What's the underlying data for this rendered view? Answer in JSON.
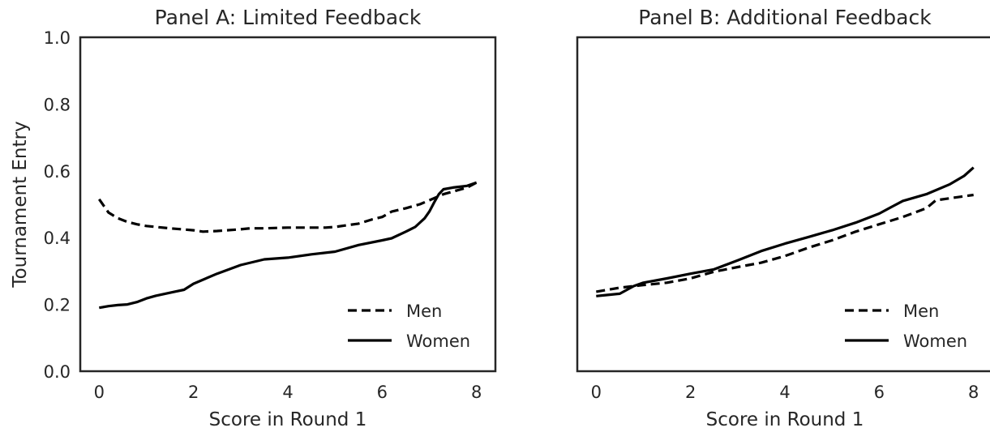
{
  "chart_data": [
    {
      "type": "line",
      "title": "Panel A: Limited Feedback",
      "xlabel": "Score in Round 1",
      "ylabel": "Tournament Entry",
      "xlim": [
        -0.4,
        8.4
      ],
      "ylim": [
        0.0,
        1.0
      ],
      "xticks": [
        "0",
        "2",
        "4",
        "6",
        "8"
      ],
      "yticks": [
        "0.0",
        "0.2",
        "0.4",
        "0.6",
        "0.8",
        "1.0"
      ],
      "grid": false,
      "legend": "bottom-right",
      "series": [
        {
          "name": "Men",
          "style": "dashed",
          "x": [
            0,
            0.2,
            0.4,
            0.6,
            0.8,
            1.0,
            1.5,
            2.0,
            2.2,
            2.5,
            3.0,
            3.2,
            3.5,
            4.0,
            4.5,
            4.8,
            5.0,
            5.5,
            5.8,
            6.0,
            6.2,
            6.5,
            6.8,
            7.0,
            7.3,
            7.6,
            7.8,
            8.0
          ],
          "y": [
            0.515,
            0.475,
            0.458,
            0.447,
            0.44,
            0.435,
            0.428,
            0.422,
            0.418,
            0.42,
            0.425,
            0.428,
            0.428,
            0.43,
            0.43,
            0.43,
            0.432,
            0.442,
            0.455,
            0.462,
            0.478,
            0.488,
            0.5,
            0.512,
            0.53,
            0.542,
            0.55,
            0.565
          ]
        },
        {
          "name": "Women",
          "style": "solid",
          "x": [
            0,
            0.2,
            0.4,
            0.6,
            0.8,
            1.0,
            1.2,
            1.4,
            1.6,
            1.8,
            2.0,
            2.5,
            3.0,
            3.5,
            4.0,
            4.5,
            5.0,
            5.5,
            6.0,
            6.2,
            6.5,
            6.7,
            6.9,
            7.0,
            7.1,
            7.2,
            7.3,
            7.5,
            7.8,
            8.0
          ],
          "y": [
            0.19,
            0.195,
            0.198,
            0.2,
            0.207,
            0.218,
            0.226,
            0.232,
            0.238,
            0.244,
            0.262,
            0.292,
            0.318,
            0.335,
            0.34,
            0.35,
            0.358,
            0.378,
            0.392,
            0.398,
            0.418,
            0.432,
            0.458,
            0.478,
            0.505,
            0.53,
            0.545,
            0.55,
            0.555,
            0.565
          ]
        }
      ]
    },
    {
      "type": "line",
      "title": "Panel B: Additional Feedback",
      "xlabel": "Score in Round 1",
      "ylabel": "",
      "xlim": [
        -0.4,
        8.4
      ],
      "ylim": [
        0.0,
        1.0
      ],
      "xticks": [
        "0",
        "2",
        "4",
        "6",
        "8"
      ],
      "yticks": [],
      "grid": false,
      "legend": "bottom-right",
      "series": [
        {
          "name": "Men",
          "style": "dashed",
          "x": [
            0,
            0.5,
            1.0,
            1.5,
            2.0,
            2.5,
            3.0,
            3.5,
            4.0,
            4.5,
            5.0,
            5.5,
            6.0,
            6.5,
            7.0,
            7.2,
            7.5,
            8.0
          ],
          "y": [
            0.238,
            0.25,
            0.258,
            0.265,
            0.278,
            0.298,
            0.312,
            0.325,
            0.345,
            0.37,
            0.392,
            0.418,
            0.44,
            0.462,
            0.488,
            0.512,
            0.518,
            0.528
          ]
        },
        {
          "name": "Women",
          "style": "solid",
          "x": [
            0,
            0.2,
            0.5,
            0.8,
            1.0,
            1.5,
            2.0,
            2.5,
            3.0,
            3.5,
            4.0,
            4.5,
            5.0,
            5.5,
            6.0,
            6.3,
            6.5,
            7.0,
            7.5,
            7.8,
            8.0
          ],
          "y": [
            0.225,
            0.228,
            0.232,
            0.255,
            0.265,
            0.278,
            0.292,
            0.305,
            0.332,
            0.36,
            0.382,
            0.402,
            0.422,
            0.445,
            0.472,
            0.495,
            0.51,
            0.53,
            0.56,
            0.585,
            0.61
          ]
        }
      ]
    }
  ]
}
